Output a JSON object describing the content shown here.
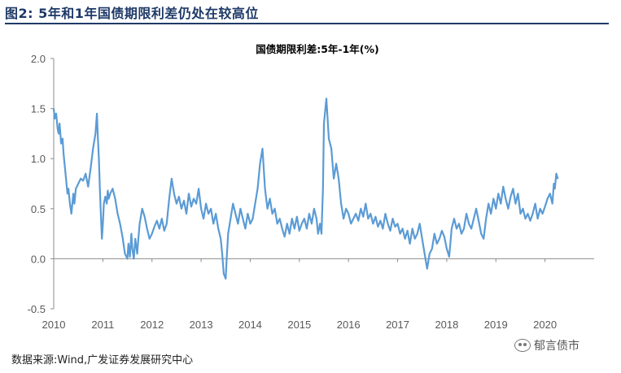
{
  "figure": {
    "title": "图2:  5年和1年国债期限利差仍处在较高位",
    "source": "数据来源:Wind,广发证券发展研究中心",
    "watermark": "郁言债市",
    "line_color": "#5b9bd5",
    "title_color": "#1f3a68"
  },
  "chart_data": {
    "type": "line",
    "title": "国债期限利差:5年-1年(%)",
    "xlabel": "",
    "ylabel": "",
    "x_ticks": [
      "2010",
      "2011",
      "2012",
      "2013",
      "2014",
      "2015",
      "2016",
      "2017",
      "2018",
      "2019",
      "2020"
    ],
    "y_ticks": [
      "2.0",
      "1.5",
      "1.0",
      "0.5",
      "0.0",
      "-0.5"
    ],
    "ylim": [
      -0.5,
      2.0
    ],
    "xlim": [
      2010.0,
      2021.0
    ],
    "grid": false,
    "series": [
      {
        "x": [
          2010.0,
          2010.02,
          2010.05,
          2010.08,
          2010.1,
          2010.12,
          2010.15,
          2010.18,
          2010.2,
          2010.22,
          2010.25,
          2010.28,
          2010.3,
          2010.33,
          2010.36,
          2010.4,
          2010.42,
          2010.45,
          2010.5,
          2010.55,
          2010.6,
          2010.65,
          2010.7,
          2010.75,
          2010.8,
          2010.85,
          2010.88,
          2010.9,
          2010.92,
          2010.94,
          2010.96,
          2010.98,
          2011.0,
          2011.02,
          2011.05,
          2011.08,
          2011.1,
          2011.12,
          2011.15,
          2011.2,
          2011.25,
          2011.3,
          2011.35,
          2011.4,
          2011.45,
          2011.5,
          2011.52,
          2011.55,
          2011.58,
          2011.6,
          2011.63,
          2011.66,
          2011.7,
          2011.72,
          2011.75,
          2011.8,
          2011.85,
          2011.9,
          2011.95,
          2012.0,
          2012.05,
          2012.1,
          2012.15,
          2012.2,
          2012.25,
          2012.3,
          2012.35,
          2012.4,
          2012.45,
          2012.5,
          2012.55,
          2012.6,
          2012.65,
          2012.7,
          2012.75,
          2012.8,
          2012.85,
          2012.9,
          2012.95,
          2013.0,
          2013.05,
          2013.1,
          2013.15,
          2013.2,
          2013.25,
          2013.3,
          2013.35,
          2013.4,
          2013.43,
          2013.46,
          2013.5,
          2013.52,
          2013.55,
          2013.6,
          2013.65,
          2013.7,
          2013.75,
          2013.8,
          2013.85,
          2013.9,
          2013.95,
          2014.0,
          2014.05,
          2014.1,
          2014.15,
          2014.2,
          2014.25,
          2014.3,
          2014.35,
          2014.4,
          2014.45,
          2014.5,
          2014.55,
          2014.6,
          2014.65,
          2014.7,
          2014.75,
          2014.8,
          2014.85,
          2014.9,
          2014.95,
          2015.0,
          2015.05,
          2015.1,
          2015.15,
          2015.2,
          2015.25,
          2015.3,
          2015.35,
          2015.38,
          2015.4,
          2015.42,
          2015.45,
          2015.48,
          2015.5,
          2015.55,
          2015.6,
          2015.65,
          2015.7,
          2015.75,
          2015.8,
          2015.85,
          2015.9,
          2015.95,
          2016.0,
          2016.05,
          2016.1,
          2016.15,
          2016.2,
          2016.25,
          2016.3,
          2016.35,
          2016.4,
          2016.45,
          2016.5,
          2016.55,
          2016.6,
          2016.65,
          2016.7,
          2016.75,
          2016.8,
          2016.85,
          2016.9,
          2016.95,
          2017.0,
          2017.05,
          2017.1,
          2017.15,
          2017.2,
          2017.25,
          2017.3,
          2017.35,
          2017.4,
          2017.45,
          2017.5,
          2017.55,
          2017.6,
          2017.65,
          2017.7,
          2017.75,
          2017.8,
          2017.85,
          2017.9,
          2017.95,
          2018.0,
          2018.05,
          2018.1,
          2018.15,
          2018.2,
          2018.25,
          2018.3,
          2018.35,
          2018.4,
          2018.45,
          2018.5,
          2018.55,
          2018.6,
          2018.65,
          2018.7,
          2018.75,
          2018.8,
          2018.85,
          2018.9,
          2018.95,
          2019.0,
          2019.05,
          2019.1,
          2019.15,
          2019.2,
          2019.25,
          2019.3,
          2019.35,
          2019.4,
          2019.45,
          2019.5,
          2019.55,
          2019.6,
          2019.65,
          2019.7,
          2019.75,
          2019.8,
          2019.85,
          2019.9,
          2019.95,
          2020.0,
          2020.05,
          2020.1,
          2020.15,
          2020.18,
          2020.2,
          2020.23,
          2020.26
        ],
        "values": [
          1.5,
          1.4,
          1.45,
          1.3,
          1.25,
          1.35,
          1.15,
          1.2,
          1.05,
          0.95,
          0.8,
          0.65,
          0.7,
          0.55,
          0.45,
          0.65,
          0.55,
          0.7,
          0.75,
          0.8,
          0.78,
          0.85,
          0.72,
          0.9,
          1.1,
          1.25,
          1.45,
          1.2,
          1.0,
          0.7,
          0.45,
          0.2,
          0.35,
          0.55,
          0.62,
          0.55,
          0.68,
          0.6,
          0.65,
          0.7,
          0.6,
          0.45,
          0.35,
          0.22,
          0.05,
          0.0,
          0.15,
          0.02,
          0.25,
          0.1,
          0.0,
          0.2,
          0.05,
          0.18,
          0.35,
          0.5,
          0.42,
          0.3,
          0.2,
          0.25,
          0.32,
          0.38,
          0.3,
          0.4,
          0.28,
          0.35,
          0.6,
          0.8,
          0.65,
          0.55,
          0.62,
          0.5,
          0.58,
          0.45,
          0.65,
          0.52,
          0.6,
          0.55,
          0.7,
          0.5,
          0.4,
          0.55,
          0.45,
          0.5,
          0.35,
          0.45,
          0.3,
          0.2,
          0.05,
          -0.15,
          -0.2,
          0.0,
          0.25,
          0.4,
          0.55,
          0.45,
          0.35,
          0.5,
          0.4,
          0.3,
          0.45,
          0.35,
          0.4,
          0.55,
          0.7,
          0.95,
          1.1,
          0.7,
          0.5,
          0.6,
          0.45,
          0.5,
          0.35,
          0.4,
          0.3,
          0.22,
          0.35,
          0.25,
          0.4,
          0.3,
          0.42,
          0.28,
          0.35,
          0.4,
          0.3,
          0.45,
          0.35,
          0.5,
          0.4,
          0.25,
          0.3,
          0.35,
          0.25,
          0.7,
          1.35,
          1.6,
          1.2,
          1.1,
          0.8,
          0.95,
          0.8,
          0.55,
          0.4,
          0.5,
          0.45,
          0.35,
          0.4,
          0.45,
          0.38,
          0.5,
          0.42,
          0.55,
          0.4,
          0.45,
          0.35,
          0.42,
          0.32,
          0.38,
          0.3,
          0.45,
          0.35,
          0.28,
          0.4,
          0.32,
          0.35,
          0.25,
          0.3,
          0.2,
          0.28,
          0.15,
          0.3,
          0.2,
          0.25,
          0.35,
          0.2,
          0.05,
          -0.1,
          0.05,
          0.1,
          0.25,
          0.15,
          0.2,
          0.28,
          0.22,
          0.1,
          0.02,
          0.3,
          0.4,
          0.3,
          0.35,
          0.25,
          0.3,
          0.45,
          0.35,
          0.3,
          0.4,
          0.5,
          0.38,
          0.25,
          0.2,
          0.4,
          0.55,
          0.45,
          0.6,
          0.5,
          0.65,
          0.55,
          0.72,
          0.6,
          0.5,
          0.62,
          0.7,
          0.55,
          0.65,
          0.45,
          0.5,
          0.4,
          0.45,
          0.38,
          0.45,
          0.55,
          0.4,
          0.5,
          0.45,
          0.52,
          0.6,
          0.65,
          0.55,
          0.75,
          0.7,
          0.85,
          0.8
        ]
      }
    ]
  }
}
